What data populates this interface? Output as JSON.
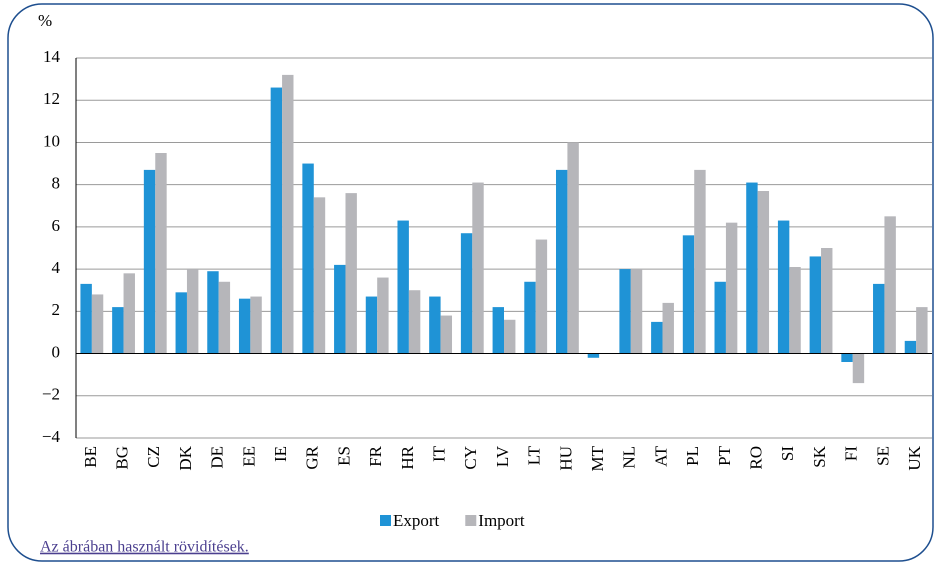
{
  "chart_data": {
    "type": "bar",
    "y_label": "%",
    "categories": [
      "BE",
      "BG",
      "CZ",
      "DK",
      "DE",
      "EE",
      "IE",
      "GR",
      "ES",
      "FR",
      "HR",
      "IT",
      "CY",
      "LV",
      "LT",
      "HU",
      "MT",
      "NL",
      "AT",
      "PL",
      "PT",
      "RO",
      "SI",
      "SK",
      "FI",
      "SE",
      "UK"
    ],
    "series": [
      {
        "name": "Export",
        "color": "#1f93d6",
        "values": [
          3.3,
          2.2,
          8.7,
          2.9,
          3.9,
          2.6,
          12.6,
          9.0,
          4.2,
          2.7,
          6.3,
          2.7,
          5.7,
          2.2,
          3.4,
          8.7,
          -0.2,
          4.0,
          1.5,
          5.6,
          3.4,
          8.1,
          6.3,
          4.6,
          -0.4,
          3.3,
          0.6
        ]
      },
      {
        "name": "Import",
        "color": "#b6b6ba",
        "values": [
          2.8,
          3.8,
          9.5,
          4.0,
          3.4,
          2.7,
          13.2,
          7.4,
          7.6,
          3.6,
          3.0,
          1.8,
          8.1,
          1.6,
          5.4,
          10.0,
          0.0,
          4.0,
          2.4,
          8.7,
          6.2,
          7.7,
          4.1,
          5.0,
          -1.4,
          6.5,
          2.2
        ]
      }
    ],
    "ylim": [
      -4,
      14
    ],
    "yticks": [
      {
        "value": -4,
        "label": "−4"
      },
      {
        "value": -2,
        "label": "−2"
      },
      0,
      2,
      4,
      6,
      8,
      10,
      12,
      14
    ],
    "grid": true,
    "legend": "bottom",
    "note": "Az ábrában használt rövidítések."
  }
}
